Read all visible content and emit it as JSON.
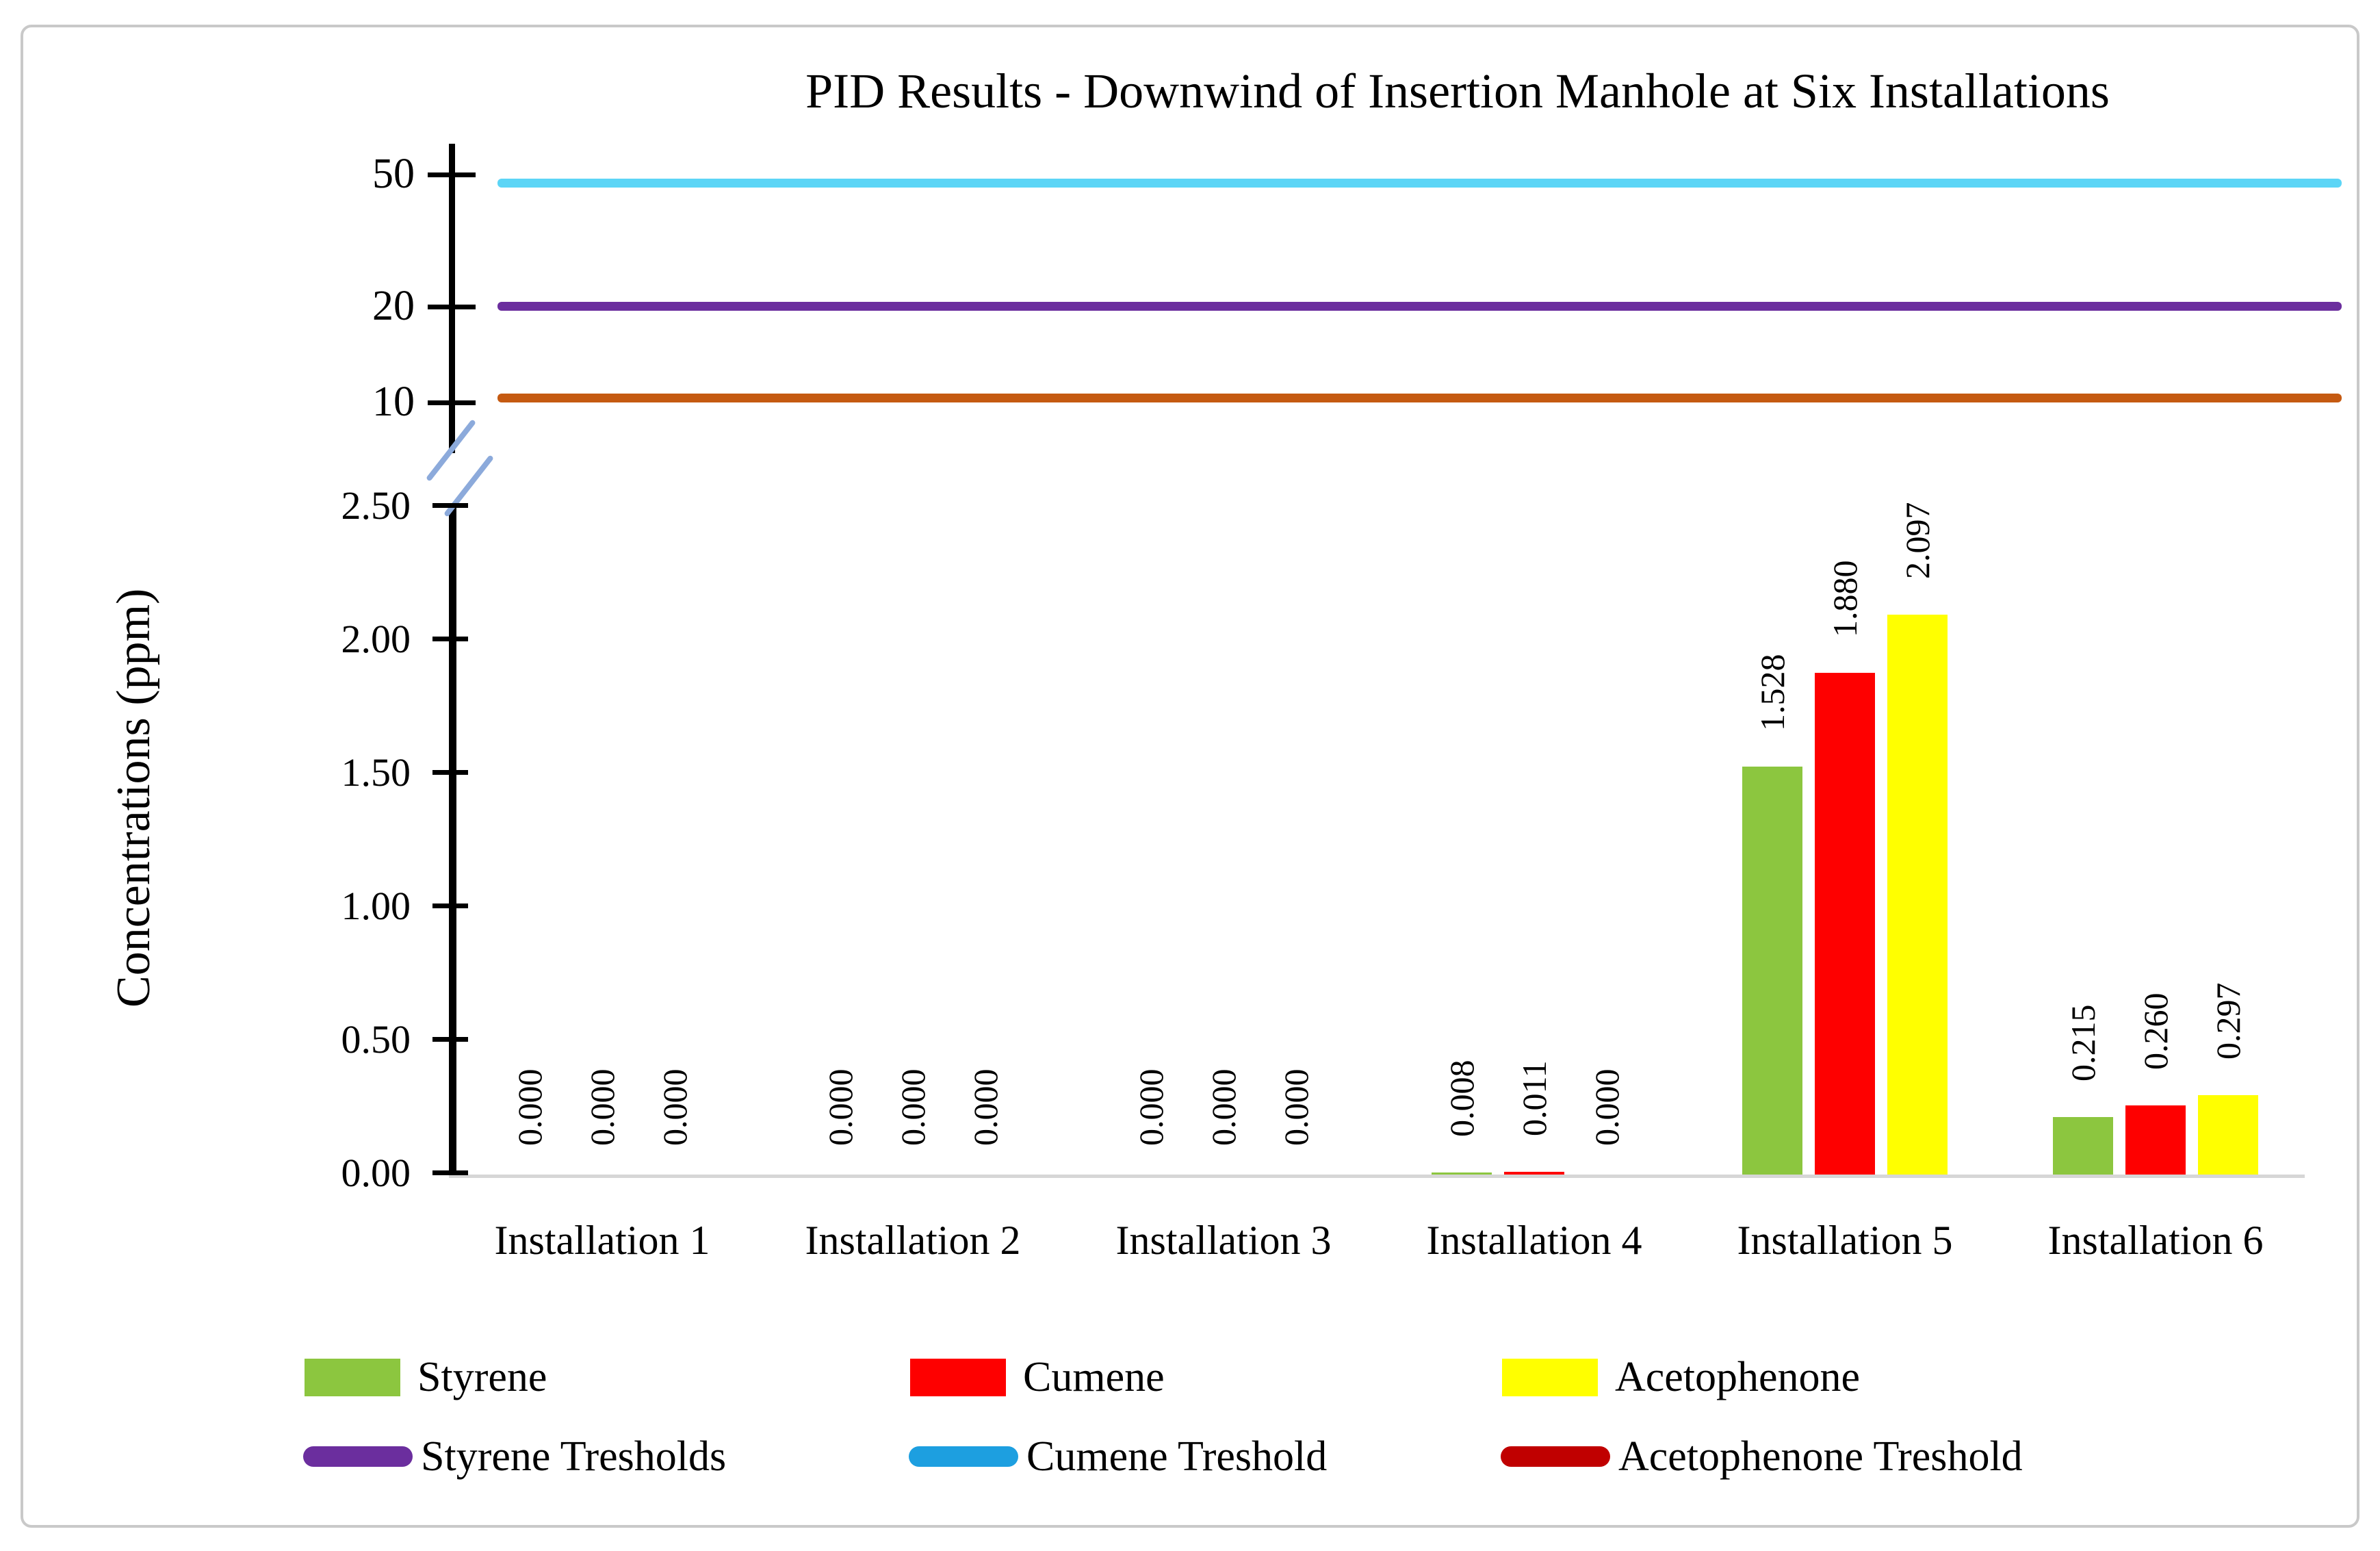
{
  "figure": {
    "title": "PID Results - Downwind of Insertion Manhole at Six Installations",
    "y_axis_label": "Concentrations (ppm)"
  },
  "chart_data": {
    "type": "bar",
    "title": "PID Results - Downwind of Insertion Manhole at Six Installations",
    "xlabel": "",
    "ylabel": "Concentrations (ppm)",
    "axis_break": true,
    "lower_ylim": [
      0,
      2.5
    ],
    "upper_axis_scale": "log",
    "grid": false,
    "legend_position": "bottom",
    "categories": [
      "Installation 1",
      "Installation 2",
      "Installation 3",
      "Installation 4",
      "Installation 5",
      "Installation 6"
    ],
    "series": [
      {
        "name": "Styrene",
        "color": "#8cc63f",
        "values": [
          0.0,
          0.0,
          0.0,
          0.008,
          1.528,
          0.215
        ],
        "labels": [
          "0.000",
          "0.000",
          "0.000",
          "0.008",
          "1.528",
          "0.215"
        ]
      },
      {
        "name": "Cumene",
        "color": "#fe0000",
        "values": [
          0.0,
          0.0,
          0.0,
          0.011,
          1.88,
          0.26
        ],
        "labels": [
          "0.000",
          "0.000",
          "0.000",
          "0.011",
          "1.880",
          "0.260"
        ]
      },
      {
        "name": "Acetophenone",
        "color": "#ffff00",
        "values": [
          0.0,
          0.0,
          0.0,
          0.0,
          2.097,
          0.297
        ],
        "labels": [
          "0.000",
          "0.000",
          "0.000",
          "0.000",
          "2.097",
          "0.297"
        ]
      }
    ],
    "thresholds": [
      {
        "name": "Styrene Tresholds",
        "value": 20,
        "line_color": "#6b2e9e",
        "legend_color": "#6b2e9e"
      },
      {
        "name": "Cumene Treshold",
        "value": 50,
        "line_color": "#5cd5f6",
        "legend_color": "#1d9fe0"
      },
      {
        "name": "Acetophenone Treshold",
        "value": 10,
        "line_color": "#c55a11",
        "legend_color": "#c00000"
      }
    ],
    "y_axis": {
      "lower_ticks": [
        "0.00",
        "0.50",
        "1.00",
        "1.50",
        "2.00",
        "2.50"
      ],
      "lower_tick_values": [
        0,
        0.5,
        1.0,
        1.5,
        2.0,
        2.5
      ],
      "upper_ticks": [
        "10",
        "20",
        "50"
      ],
      "upper_tick_values": [
        10,
        20,
        50
      ]
    }
  }
}
